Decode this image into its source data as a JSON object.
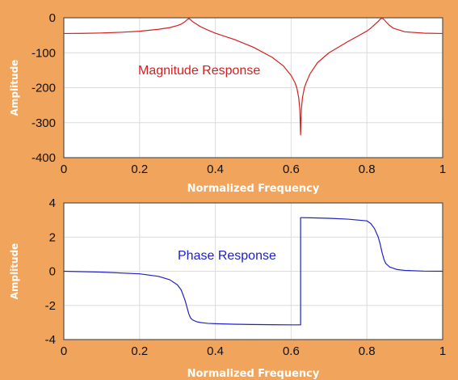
{
  "figure": {
    "background": "#f0a45c"
  },
  "chart_data": [
    {
      "type": "line",
      "color": "#d42020",
      "title": "",
      "xlabel": "Normalized Frequency",
      "ylabel": "Amplitude",
      "annotation": "Magnitude Response",
      "xlim": [
        0,
        1
      ],
      "ylim": [
        -400,
        0
      ],
      "xticks": [
        0,
        0.2,
        0.4,
        0.6,
        0.8,
        1
      ],
      "xtick_labels": [
        "0",
        "0.2",
        "0.4",
        "0.6",
        "0.8",
        "1"
      ],
      "yticks": [
        0,
        -100,
        -200,
        -300,
        -400
      ],
      "ytick_labels": [
        "0",
        "-100",
        "-200",
        "-300",
        "-400"
      ],
      "grid": true,
      "series": [
        {
          "x": [
            0,
            0.05,
            0.1,
            0.15,
            0.2,
            0.25,
            0.28,
            0.3,
            0.31,
            0.32,
            0.325,
            0.33,
            0.335,
            0.34,
            0.35,
            0.36,
            0.38,
            0.4,
            0.45,
            0.5,
            0.55,
            0.58,
            0.6,
            0.61,
            0.615,
            0.62,
            0.623,
            0.625,
            0.627,
            0.63,
            0.635,
            0.64,
            0.65,
            0.67,
            0.7,
            0.75,
            0.78,
            0.8,
            0.81,
            0.82,
            0.83,
            0.835,
            0.84,
            0.845,
            0.85,
            0.86,
            0.87,
            0.9,
            0.95,
            1
          ],
          "y": [
            -45,
            -44.5,
            -43.5,
            -41.5,
            -38.5,
            -33,
            -28,
            -22,
            -18,
            -11,
            -6,
            -2,
            -6,
            -11,
            -18,
            -25,
            -35,
            -44,
            -62,
            -84,
            -113,
            -138,
            -165,
            -185,
            -200,
            -228,
            -262,
            -335,
            -262,
            -228,
            -200,
            -185,
            -160,
            -128,
            -100,
            -68,
            -50,
            -38,
            -30,
            -20,
            -10,
            -4,
            -1,
            -5,
            -11,
            -22,
            -30,
            -40,
            -44,
            -45
          ]
        }
      ]
    },
    {
      "type": "line",
      "color": "#2020c8",
      "title": "",
      "xlabel": "Normalized Frequency",
      "ylabel": "Amplitude",
      "annotation": "Phase Response",
      "xlim": [
        0,
        1
      ],
      "ylim": [
        -4,
        4
      ],
      "xticks": [
        0,
        0.2,
        0.4,
        0.6,
        0.8,
        1
      ],
      "xtick_labels": [
        "0",
        "0.2",
        "0.4",
        "0.6",
        "0.8",
        "1"
      ],
      "yticks": [
        4,
        2,
        0,
        -2,
        -4
      ],
      "ytick_labels": [
        "4",
        "2",
        "0",
        "-2",
        "-4"
      ],
      "grid": true,
      "series": [
        {
          "x": [
            0,
            0.1,
            0.2,
            0.25,
            0.28,
            0.3,
            0.31,
            0.32,
            0.325,
            0.33,
            0.335,
            0.34,
            0.345,
            0.35,
            0.36,
            0.38,
            0.4,
            0.45,
            0.5,
            0.55,
            0.6,
            0.62,
            0.625,
            0.625,
            0.63,
            0.65,
            0.7,
            0.75,
            0.8,
            0.81,
            0.82,
            0.83,
            0.835,
            0.84,
            0.845,
            0.85,
            0.86,
            0.88,
            0.9,
            0.95,
            1
          ],
          "y": [
            0,
            -0.05,
            -0.15,
            -0.3,
            -0.5,
            -0.8,
            -1.1,
            -1.7,
            -2.1,
            -2.5,
            -2.75,
            -2.85,
            -2.9,
            -2.95,
            -3.0,
            -3.05,
            -3.07,
            -3.1,
            -3.12,
            -3.13,
            -3.14,
            -3.14,
            -3.14,
            3.14,
            3.14,
            3.13,
            3.1,
            3.05,
            2.95,
            2.8,
            2.5,
            2.0,
            1.6,
            1.1,
            0.7,
            0.45,
            0.25,
            0.1,
            0.05,
            0.01,
            0
          ]
        }
      ]
    }
  ]
}
